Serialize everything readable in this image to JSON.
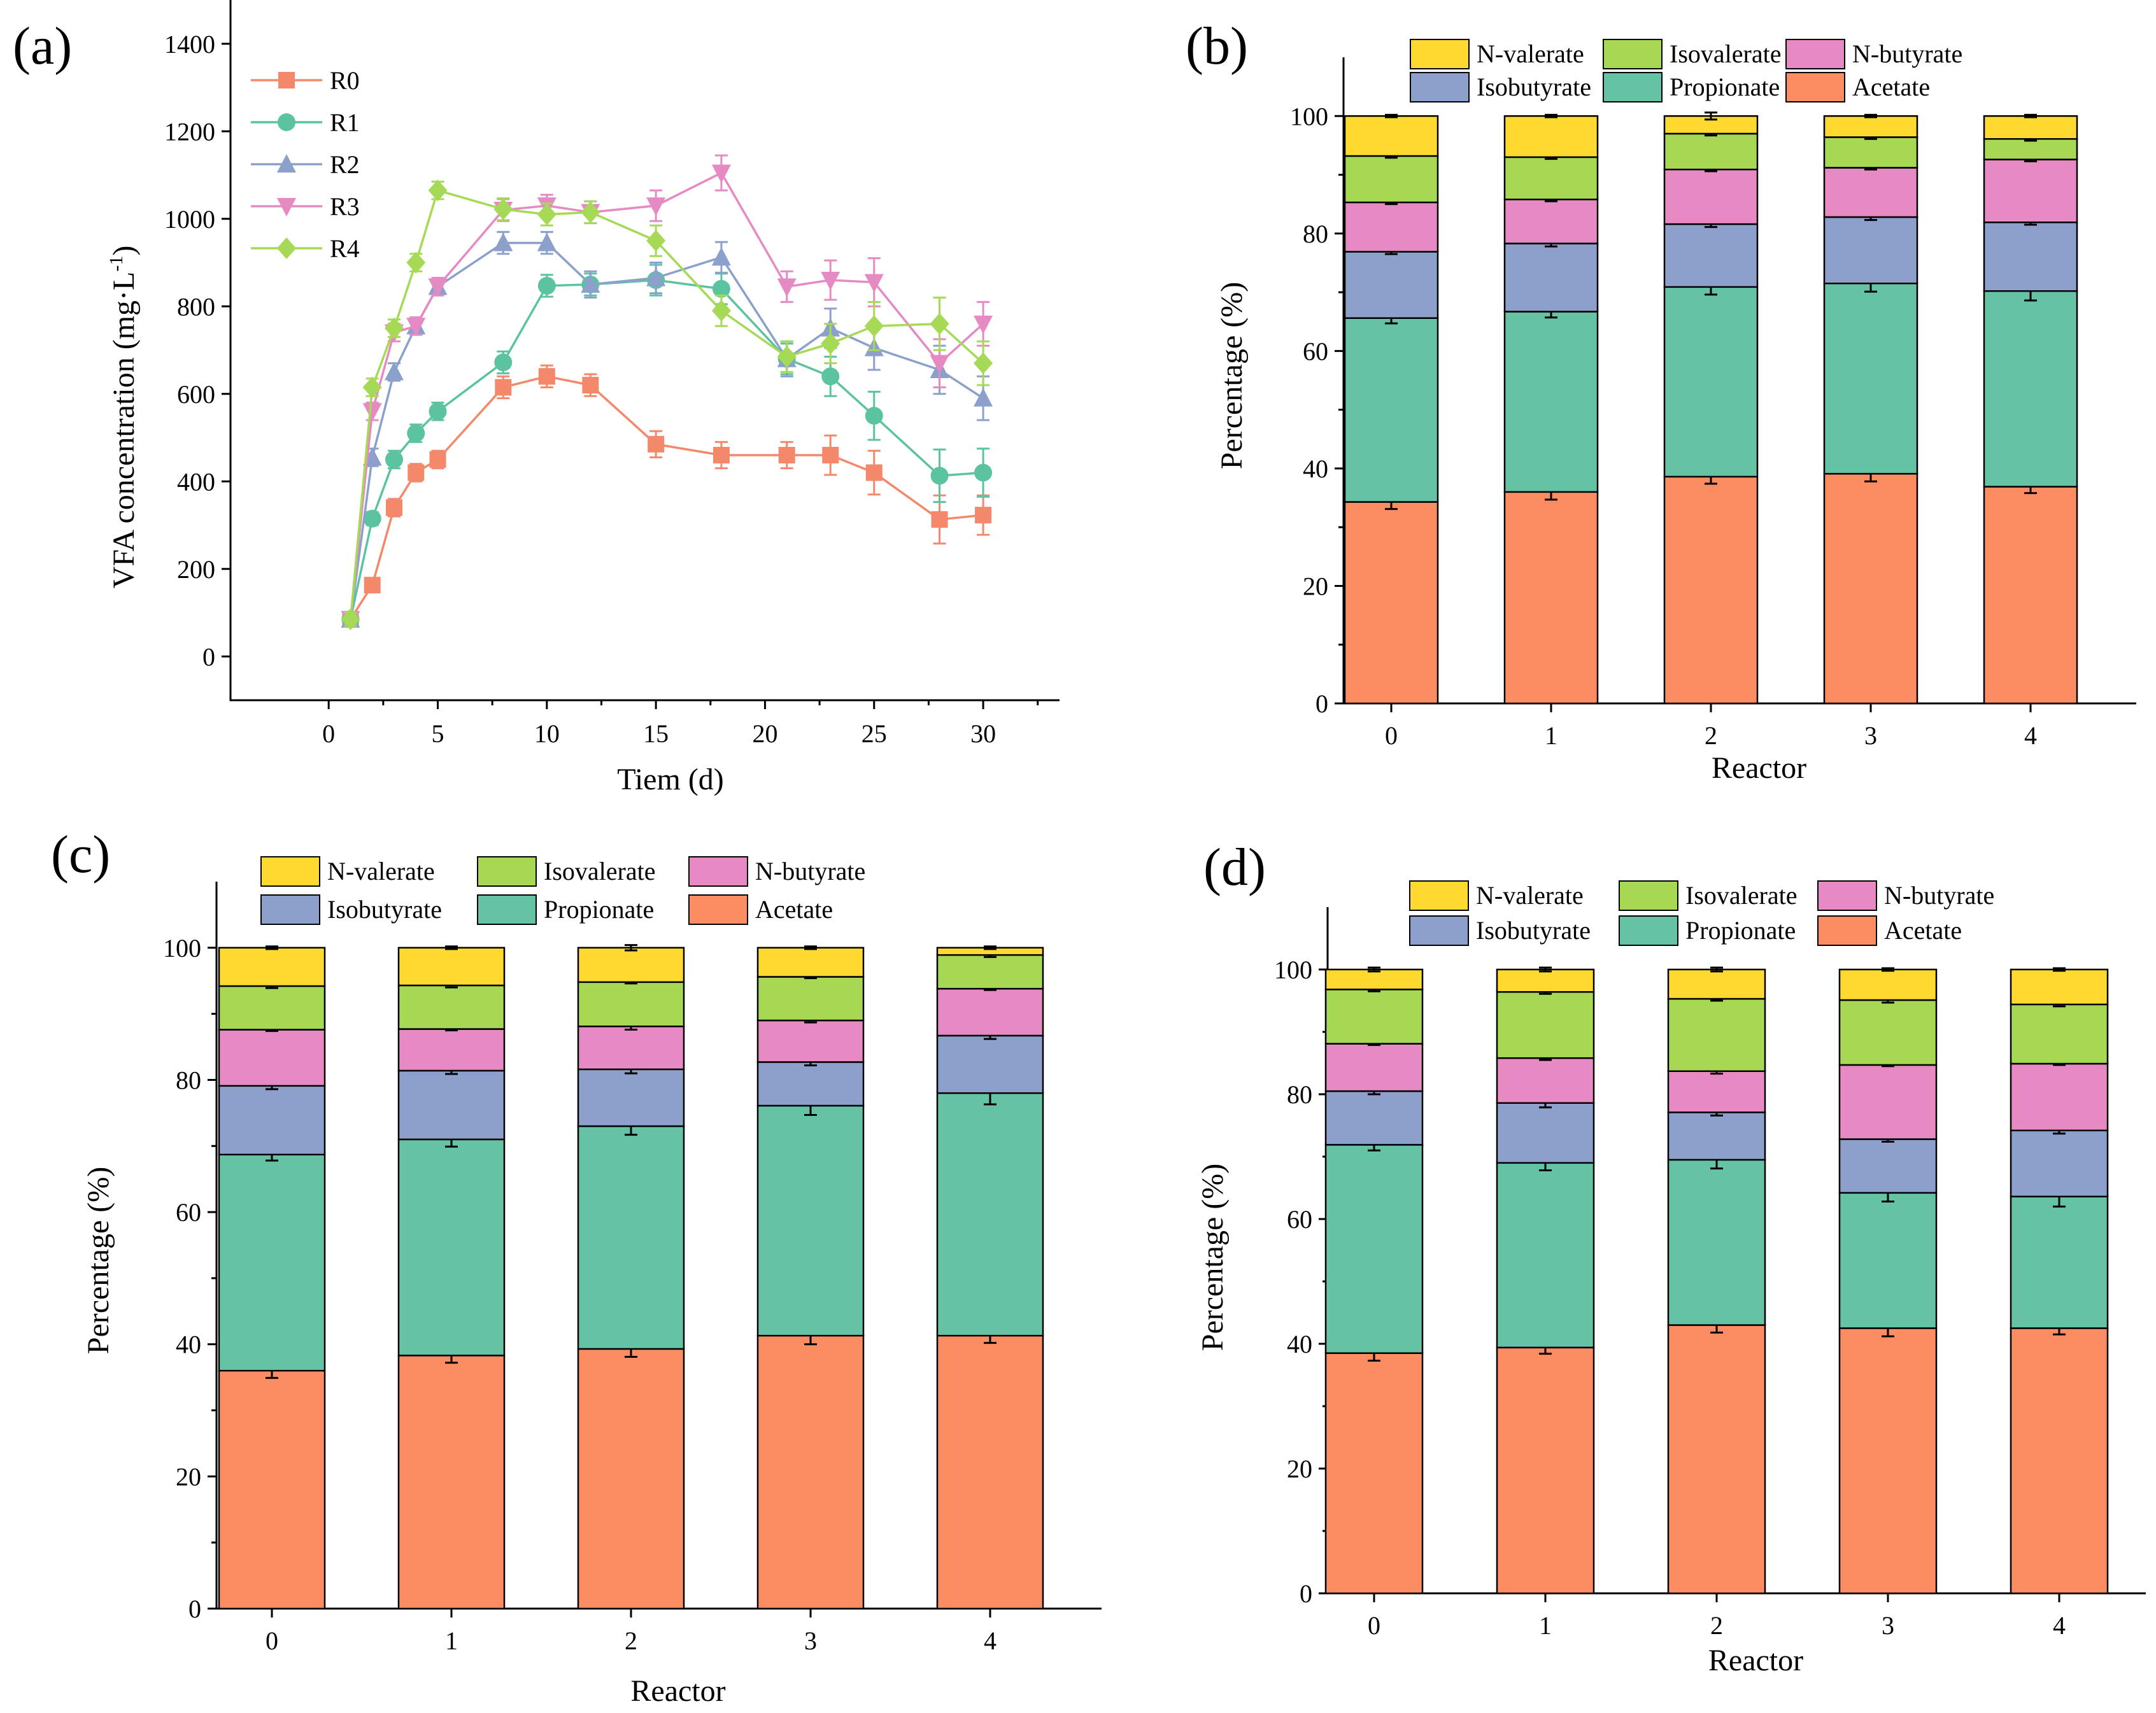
{
  "chart_data": [
    {
      "panel": "(a)",
      "type": "line",
      "title": "",
      "xlabel": "Tiem (d)",
      "ylabel": "VFA concentration (mg·L",
      "ylabel_sup": "-1",
      "ylabel_close": ")",
      "xlim": [
        -4.5,
        33.5
      ],
      "ylim": [
        -100,
        1500
      ],
      "xticks": [
        0,
        5,
        10,
        15,
        20,
        25,
        30
      ],
      "yticks": [
        0,
        200,
        400,
        600,
        800,
        1000,
        1200,
        1400
      ],
      "x": [
        1,
        2,
        3,
        4,
        5,
        8,
        10,
        12,
        15,
        18,
        21,
        23,
        25,
        28,
        30
      ],
      "series": [
        {
          "name": "R0",
          "color": "#F4886B",
          "marker": "square",
          "values": [
            85,
            163,
            340,
            420,
            450,
            615,
            640,
            620,
            485,
            460,
            460,
            460,
            420,
            313,
            323
          ],
          "errors": [
            15,
            15,
            20,
            20,
            20,
            25,
            25,
            25,
            30,
            30,
            30,
            45,
            50,
            55,
            45
          ]
        },
        {
          "name": "R1",
          "color": "#5CC3A0",
          "marker": "circle",
          "values": [
            85,
            315,
            450,
            510,
            560,
            672,
            847,
            850,
            860,
            840,
            680,
            640,
            550,
            413,
            420
          ],
          "errors": [
            15,
            15,
            20,
            20,
            20,
            25,
            25,
            25,
            35,
            35,
            35,
            45,
            55,
            60,
            55
          ]
        },
        {
          "name": "R2",
          "color": "#8BA0CB",
          "marker": "triangle-up",
          "values": [
            85,
            455,
            650,
            755,
            845,
            945,
            945,
            850,
            865,
            912,
            680,
            750,
            705,
            655,
            590
          ],
          "errors": [
            15,
            20,
            20,
            20,
            20,
            25,
            25,
            30,
            35,
            35,
            40,
            45,
            50,
            55,
            50
          ]
        },
        {
          "name": "R3",
          "color": "#E68AC3",
          "marker": "triangle-down",
          "values": [
            85,
            560,
            740,
            755,
            845,
            1020,
            1030,
            1015,
            1030,
            1105,
            845,
            860,
            855,
            670,
            760
          ],
          "errors": [
            15,
            20,
            20,
            20,
            20,
            25,
            25,
            25,
            35,
            40,
            35,
            45,
            55,
            55,
            50
          ]
        },
        {
          "name": "R4",
          "color": "#A6D955",
          "marker": "diamond",
          "values": [
            85,
            615,
            750,
            900,
            1065,
            1022,
            1010,
            1015,
            950,
            790,
            685,
            715,
            755,
            760,
            670
          ],
          "errors": [
            15,
            20,
            20,
            20,
            20,
            25,
            25,
            25,
            35,
            35,
            35,
            45,
            55,
            60,
            50
          ]
        }
      ]
    },
    {
      "panel": "(b)",
      "type": "bar",
      "stacked": true,
      "xlabel": "Reactor",
      "ylabel": "Percentage (%)",
      "ylim": [
        0,
        110
      ],
      "yticks": [
        0,
        20,
        40,
        60,
        80,
        100
      ],
      "categories": [
        "0",
        "1",
        "2",
        "3",
        "4"
      ],
      "series": [
        {
          "name": "Acetate",
          "color": "#FC8D62",
          "values": [
            34.3,
            36.0,
            38.6,
            39.1,
            36.9
          ],
          "errors": [
            1.2,
            1.3,
            1.2,
            1.3,
            1.1
          ]
        },
        {
          "name": "Propionate",
          "color": "#66C2A5",
          "values": [
            31.3,
            30.7,
            32.3,
            32.4,
            33.3
          ],
          "errors": [
            0.9,
            1.0,
            1.3,
            1.4,
            1.6
          ]
        },
        {
          "name": "Isobutyrate",
          "color": "#8DA0CB",
          "values": [
            11.3,
            11.6,
            10.7,
            11.3,
            11.7
          ],
          "errors": [
            0.4,
            0.5,
            0.5,
            0.5,
            0.4
          ]
        },
        {
          "name": "N-butyrate",
          "color": "#E78AC3",
          "values": [
            8.4,
            7.5,
            9.3,
            8.4,
            10.7
          ],
          "errors": [
            0.3,
            0.3,
            0.3,
            0.3,
            0.3
          ]
        },
        {
          "name": "Isovalerate",
          "color": "#A6D854",
          "values": [
            7.9,
            7.2,
            6.1,
            5.2,
            3.5
          ],
          "errors": [
            0.3,
            0.3,
            0.3,
            0.3,
            0.3
          ]
        },
        {
          "name": "N-valerate",
          "color": "#FFD92F",
          "values": [
            6.8,
            7.0,
            3.0,
            3.6,
            3.9
          ],
          "errors": [
            0.2,
            0.2,
            0.6,
            0.2,
            0.2
          ]
        }
      ]
    },
    {
      "panel": "(c)",
      "type": "bar",
      "stacked": true,
      "xlabel": "Reactor",
      "ylabel": "Percentage (%)",
      "ylim": [
        0,
        110
      ],
      "yticks": [
        0,
        20,
        40,
        60,
        80,
        100
      ],
      "categories": [
        "0",
        "1",
        "2",
        "3",
        "4"
      ],
      "series": [
        {
          "name": "Acetate",
          "color": "#FC8D62",
          "values": [
            36.0,
            38.3,
            39.3,
            41.3,
            41.3
          ],
          "errors": [
            1.1,
            1.1,
            1.2,
            1.3,
            1.1
          ]
        },
        {
          "name": "Propionate",
          "color": "#66C2A5",
          "values": [
            32.7,
            32.7,
            33.7,
            34.8,
            36.7
          ],
          "errors": [
            0.9,
            1.1,
            1.3,
            1.4,
            1.7
          ]
        },
        {
          "name": "Isobutyrate",
          "color": "#8DA0CB",
          "values": [
            10.4,
            10.4,
            8.6,
            6.6,
            8.7
          ],
          "errors": [
            0.5,
            0.5,
            0.6,
            0.5,
            0.5
          ]
        },
        {
          "name": "N-butyrate",
          "color": "#E78AC3",
          "values": [
            8.5,
            6.3,
            6.5,
            6.3,
            7.1
          ],
          "errors": [
            0.2,
            0.2,
            0.5,
            0.3,
            0.2
          ]
        },
        {
          "name": "Isovalerate",
          "color": "#A6D854",
          "values": [
            6.6,
            6.6,
            6.7,
            6.6,
            5.1
          ],
          "errors": [
            0.3,
            0.3,
            0.2,
            0.2,
            0.3
          ]
        },
        {
          "name": "N-valerate",
          "color": "#FFD92F",
          "values": [
            5.8,
            5.7,
            5.2,
            4.4,
            1.1
          ],
          "errors": [
            0.2,
            0.2,
            0.4,
            0.2,
            0.2
          ]
        }
      ]
    },
    {
      "panel": "(d)",
      "type": "bar",
      "stacked": true,
      "xlabel": "Reactor",
      "ylabel": "Percentage (%)",
      "ylim": [
        0,
        110
      ],
      "yticks": [
        0,
        20,
        40,
        60,
        80,
        100
      ],
      "categories": [
        "0",
        "1",
        "2",
        "3",
        "4"
      ],
      "series": [
        {
          "name": "Acetate",
          "color": "#FC8D62",
          "values": [
            38.5,
            39.4,
            43.0,
            42.5,
            42.5
          ],
          "errors": [
            1.2,
            1.0,
            1.2,
            1.3,
            1.0
          ]
        },
        {
          "name": "Propionate",
          "color": "#66C2A5",
          "values": [
            33.4,
            29.6,
            26.5,
            21.7,
            21.1
          ],
          "errors": [
            0.9,
            1.2,
            1.4,
            1.4,
            1.6
          ]
        },
        {
          "name": "Isobutyrate",
          "color": "#8DA0CB",
          "values": [
            8.6,
            9.6,
            7.6,
            8.6,
            10.6
          ],
          "errors": [
            0.5,
            0.7,
            0.5,
            0.4,
            0.5
          ]
        },
        {
          "name": "N-butyrate",
          "color": "#E78AC3",
          "values": [
            7.6,
            7.2,
            6.6,
            11.9,
            10.7
          ],
          "errors": [
            0.2,
            0.3,
            0.4,
            0.2,
            0.2
          ]
        },
        {
          "name": "Isovalerate",
          "color": "#A6D854",
          "values": [
            8.7,
            10.6,
            11.6,
            10.4,
            9.5
          ],
          "errors": [
            0.3,
            0.3,
            0.3,
            0.4,
            0.3
          ]
        },
        {
          "name": "N-valerate",
          "color": "#FFD92F",
          "values": [
            3.2,
            3.6,
            4.7,
            4.9,
            5.6
          ],
          "errors": [
            0.3,
            0.3,
            0.3,
            0.2,
            0.2
          ]
        }
      ]
    }
  ]
}
